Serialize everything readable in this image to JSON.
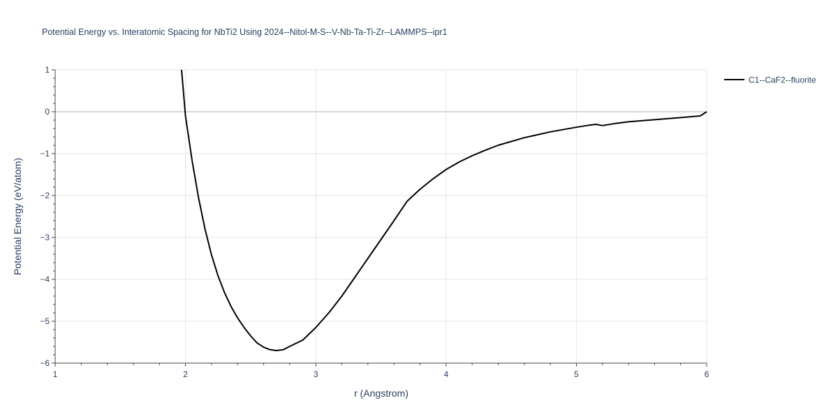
{
  "chart_data": {
    "type": "line",
    "title": "Potential Energy vs. Interatomic Spacing for NbTi2 Using 2024--Nitol-M-S--V-Nb-Ta-Ti-Zr--LAMMPS--ipr1",
    "xlabel": "r (Angstrom)",
    "ylabel": "Potential Energy (eV/atom)",
    "xlim": [
      1,
      6
    ],
    "ylim": [
      -6,
      1
    ],
    "xticks": [
      1,
      2,
      3,
      4,
      5,
      6
    ],
    "xtick_labels": [
      "1",
      "2",
      "3",
      "4",
      "5",
      "6"
    ],
    "yticks": [
      1,
      0,
      -1,
      -2,
      -3,
      -4,
      -5,
      -6
    ],
    "ytick_labels": [
      "1",
      "0",
      "−1",
      "−2",
      "−3",
      "−4",
      "−5",
      "−6"
    ],
    "grid": true,
    "legend_position": "top-right",
    "colors": {
      "line": "#000000",
      "grid": "#e5e5e5",
      "zeroline": "#c8c8c8",
      "text": "#2a3f5f"
    },
    "series": [
      {
        "name": "C1--CaF2--fluorite",
        "x": [
          1.97,
          2.0,
          2.05,
          2.1,
          2.15,
          2.2,
          2.25,
          2.3,
          2.35,
          2.4,
          2.45,
          2.5,
          2.55,
          2.6,
          2.65,
          2.7,
          2.75,
          2.8,
          2.9,
          3.0,
          3.1,
          3.2,
          3.3,
          3.4,
          3.5,
          3.6,
          3.65,
          3.7,
          3.8,
          3.9,
          4.0,
          4.1,
          4.2,
          4.3,
          4.4,
          4.6,
          4.8,
          5.0,
          5.1,
          5.15,
          5.2,
          5.3,
          5.4,
          5.6,
          5.8,
          5.95,
          6.0
        ],
        "y": [
          1.0,
          -0.1,
          -1.15,
          -2.05,
          -2.8,
          -3.42,
          -3.92,
          -4.32,
          -4.65,
          -4.92,
          -5.15,
          -5.35,
          -5.52,
          -5.62,
          -5.68,
          -5.7,
          -5.68,
          -5.6,
          -5.45,
          -5.15,
          -4.8,
          -4.4,
          -3.95,
          -3.5,
          -3.05,
          -2.6,
          -2.37,
          -2.14,
          -1.85,
          -1.6,
          -1.38,
          -1.2,
          -1.05,
          -0.92,
          -0.8,
          -0.62,
          -0.48,
          -0.37,
          -0.32,
          -0.3,
          -0.33,
          -0.28,
          -0.24,
          -0.19,
          -0.14,
          -0.1,
          0.0
        ]
      }
    ]
  }
}
